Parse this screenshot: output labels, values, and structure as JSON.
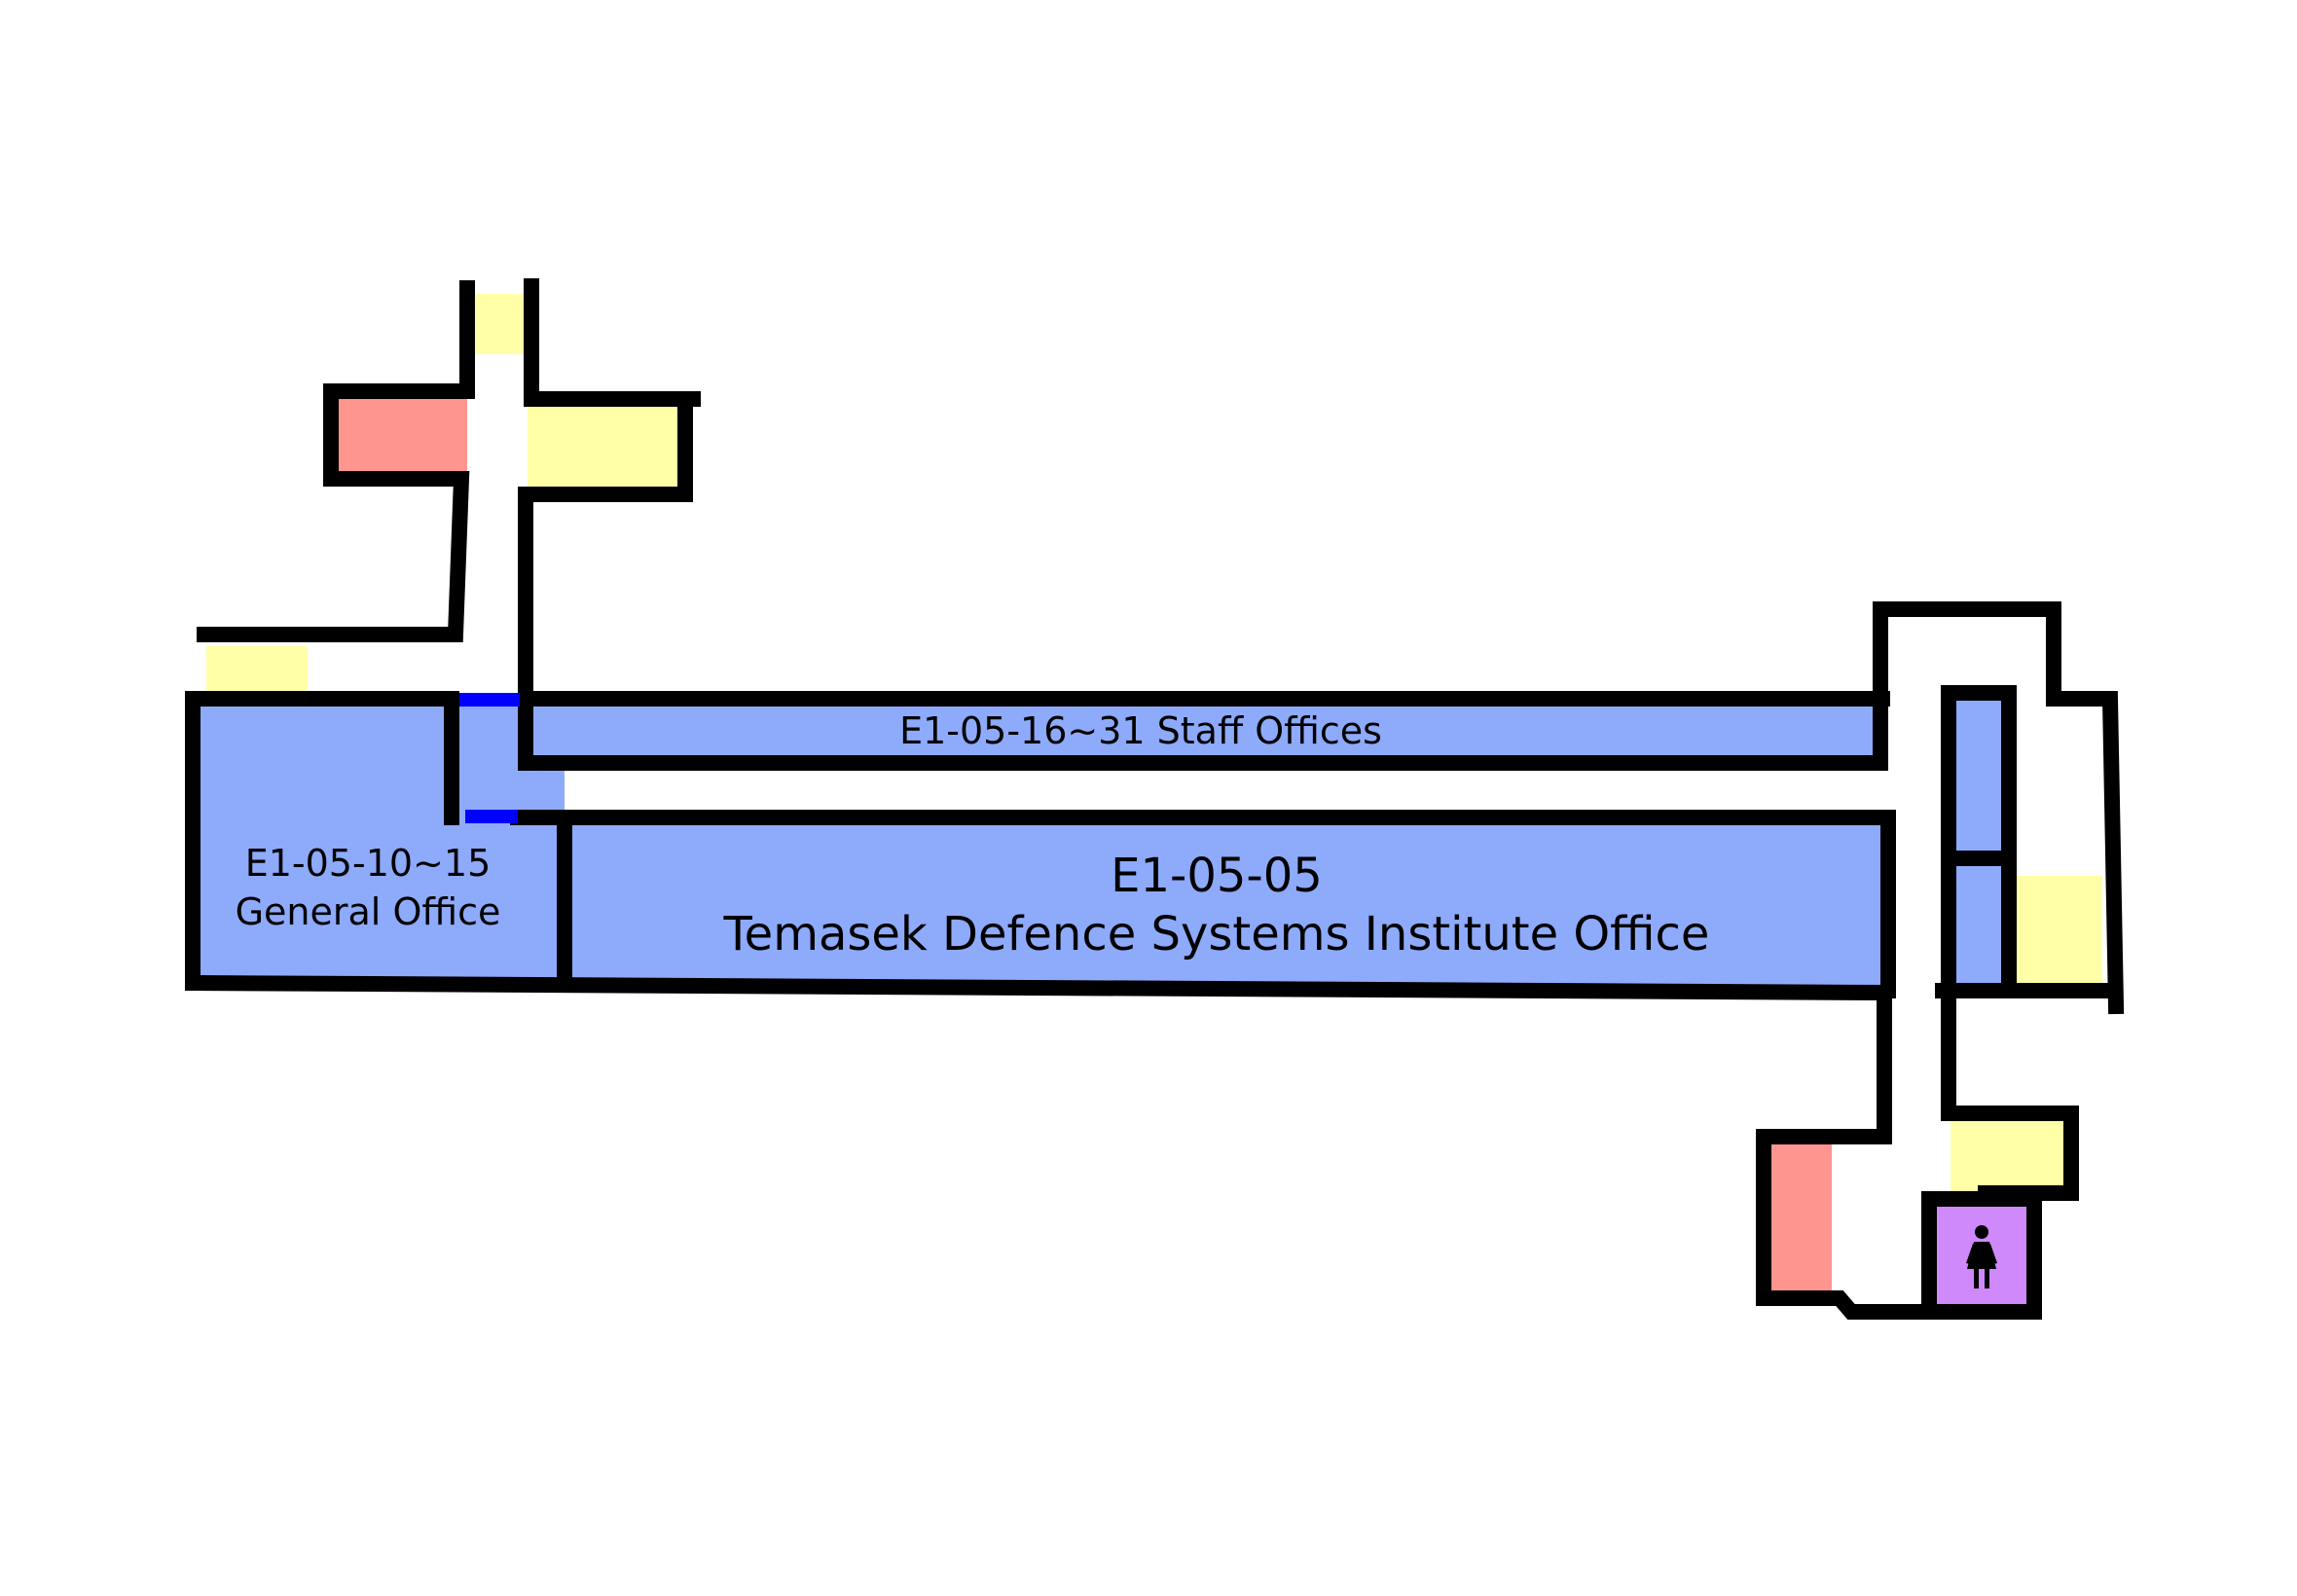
{
  "colors": {
    "office": "#8eaafb",
    "stairs": "#ffffa8",
    "service": "#ff958f",
    "restroom": "#cf89fa",
    "door": "#0000ff",
    "wall": "#000000",
    "background": "#ffffff"
  },
  "rooms": {
    "staff_offices": {
      "label": "E1-05-16~31 Staff Offices"
    },
    "general_office": {
      "line1": "E1-05-10~15",
      "line2": "General Office"
    },
    "institute_office": {
      "line1": "E1-05-05",
      "line2": "Temasek Defence Systems Institute Office"
    }
  },
  "icons": {
    "restroom": "female-restroom-icon"
  }
}
